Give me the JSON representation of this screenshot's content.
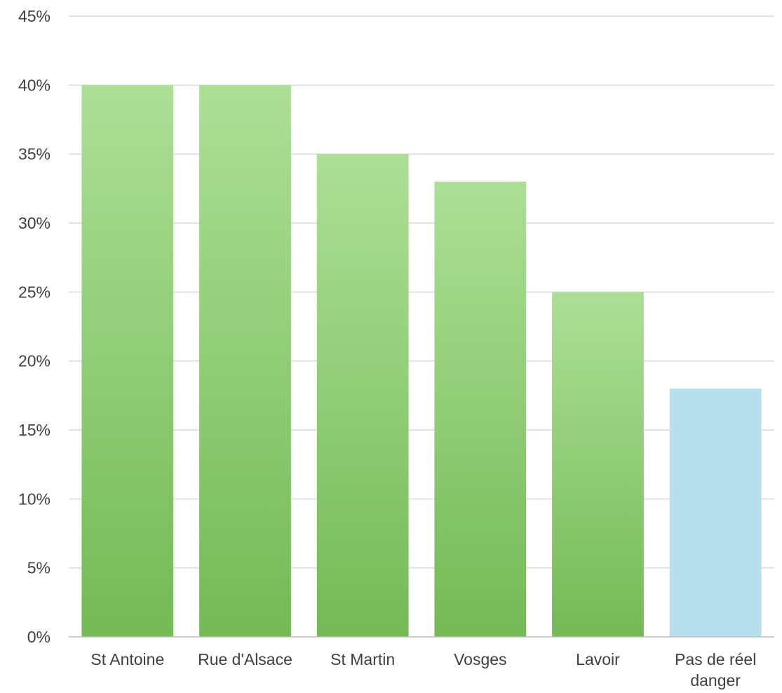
{
  "chart_data": {
    "type": "bar",
    "categories": [
      [
        "St Antoine"
      ],
      [
        "Rue d'Alsace"
      ],
      [
        "St Martin"
      ],
      [
        "Vosges"
      ],
      [
        "Lavoir"
      ],
      [
        "Pas de réel",
        "danger"
      ]
    ],
    "values": [
      0.4,
      0.4,
      0.35,
      0.33,
      0.25,
      0.18
    ],
    "ylim": [
      0,
      0.45
    ],
    "y_ticks": [
      "0%",
      "5%",
      "10%",
      "15%",
      "20%",
      "25%",
      "30%",
      "35%",
      "40%",
      "45%"
    ],
    "grid": true,
    "legend": "none",
    "colors": {
      "green_top": "#addf96",
      "green_bottom": "#74ba56",
      "blue": "#b8dfee"
    },
    "bar_colors": [
      "green",
      "green",
      "green",
      "green",
      "green",
      "blue"
    ]
  }
}
